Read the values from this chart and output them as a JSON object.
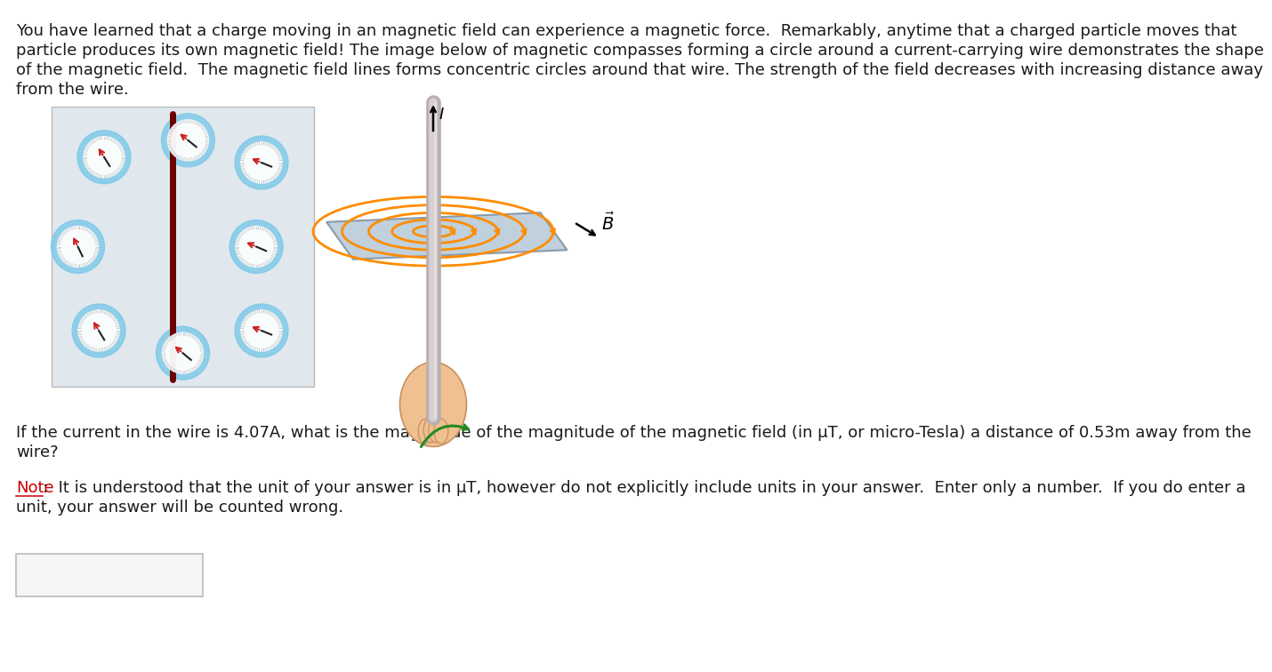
{
  "bg_color": "#ffffff",
  "text_color": "#1a1a1a",
  "note_color": "#cc0000",
  "para1_lines": [
    "You have learned that a charge moving in an magnetic field can experience a magnetic force.  Remarkably, anytime that a charged particle moves that",
    "particle produces its own magnetic field! The image below of magnetic compasses forming a circle around a current-carrying wire demonstrates the shape",
    "of the magnetic field.  The magnetic field lines forms concentric circles around that wire. The strength of the field decreases with increasing distance away",
    "from the wire."
  ],
  "question_lines": [
    "If the current in the wire is 4.07A, what is the magnitude of the magnitude of the magnetic field (in μT, or micro-Tesla) a distance of 0.53m away from the",
    "wire?"
  ],
  "note_word": "Note",
  "note_rest": ":  It is understood that the unit of your answer is in μT, however do not explicitly include units in your answer.  Enter only a number.  If you do enter a",
  "note_line2": "unit, your answer will be counted wrong.",
  "font_size": 13.0,
  "wire_dark": "#6B0000",
  "orange": "#FF8C00",
  "platform_face": "#b8cad8",
  "platform_edge": "#8090a0",
  "hand_color": "#f0c090",
  "hand_edge": "#c89060",
  "green_arrow": "#228B22",
  "compass_outer": "#7bc8e8",
  "compass_inner": "#ffffff",
  "compass_needle_red": "#cc2222",
  "compass_needle_black": "#222222",
  "compass_bg": "#dce8f0"
}
